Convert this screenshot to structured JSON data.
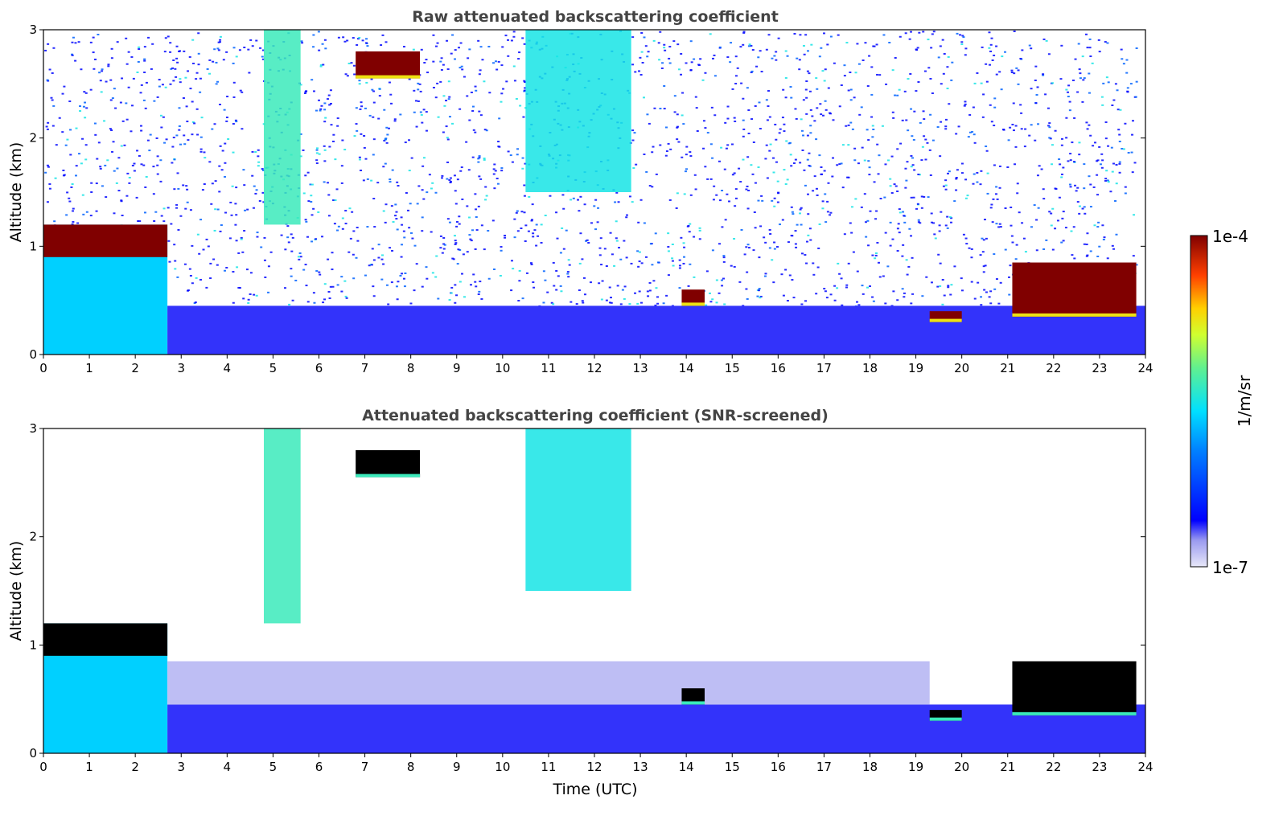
{
  "chart_data": [
    {
      "type": "heatmap",
      "title": "Raw attenuated backscattering coefficient",
      "xlabel": "",
      "ylabel": "Altitude (km)",
      "xlim": [
        0,
        24
      ],
      "ylim": [
        0,
        3
      ],
      "xticks": [
        "0",
        "1",
        "2",
        "3",
        "4",
        "5",
        "6",
        "7",
        "8",
        "9",
        "10",
        "11",
        "12",
        "13",
        "14",
        "15",
        "16",
        "17",
        "18",
        "19",
        "20",
        "21",
        "22",
        "23",
        "24"
      ],
      "yticks": [
        "0",
        "1",
        "2",
        "3"
      ],
      "screened": false,
      "features": [
        {
          "kind": "boundary_layer",
          "t": [
            0,
            2.7
          ],
          "z": [
            0,
            1.2
          ],
          "level": 0.45
        },
        {
          "kind": "cloud_top",
          "t": [
            0,
            2.7
          ],
          "z_top": [
            0.9,
            1.2
          ],
          "level": 1.0
        },
        {
          "kind": "aerosol_layer",
          "t": [
            2.7,
            24
          ],
          "z": [
            0,
            0.45
          ],
          "level": 0.12
        },
        {
          "kind": "cloud",
          "t": [
            6.8,
            8.2
          ],
          "z": [
            2.55,
            2.8
          ],
          "level": 1.0
        },
        {
          "kind": "virga",
          "t": [
            4.8,
            5.6
          ],
          "z": [
            1.2,
            3.0
          ],
          "level": 0.55
        },
        {
          "kind": "cirrus",
          "t": [
            10.5,
            12.8
          ],
          "z": [
            1.5,
            3.0
          ],
          "level": 0.5
        },
        {
          "kind": "cloud",
          "t": [
            13.9,
            14.4
          ],
          "z": [
            0.45,
            0.6
          ],
          "level": 1.0
        },
        {
          "kind": "cloud",
          "t": [
            19.3,
            20.0
          ],
          "z": [
            0.3,
            0.4
          ],
          "level": 1.0
        },
        {
          "kind": "cloud",
          "t": [
            21.1,
            23.8
          ],
          "z": [
            0.35,
            0.85
          ],
          "level": 1.0
        }
      ]
    },
    {
      "type": "heatmap",
      "title": "Attenuated backscattering coefficient (SNR-screened)",
      "xlabel": "Time (UTC)",
      "ylabel": "Altitude (km)",
      "xlim": [
        0,
        24
      ],
      "ylim": [
        0,
        3
      ],
      "xticks": [
        "0",
        "1",
        "2",
        "3",
        "4",
        "5",
        "6",
        "7",
        "8",
        "9",
        "10",
        "11",
        "12",
        "13",
        "14",
        "15",
        "16",
        "17",
        "18",
        "19",
        "20",
        "21",
        "22",
        "23",
        "24"
      ],
      "yticks": [
        "0",
        "1",
        "2",
        "3"
      ],
      "screened": true,
      "features": [
        {
          "kind": "boundary_layer",
          "t": [
            0,
            2.7
          ],
          "z": [
            0,
            1.2
          ],
          "level": 0.45
        },
        {
          "kind": "cloud_top",
          "t": [
            0,
            2.7
          ],
          "z_top": [
            0.9,
            1.2
          ],
          "level": 1.0
        },
        {
          "kind": "aerosol_layer",
          "t": [
            2.7,
            24
          ],
          "z": [
            0,
            0.45
          ],
          "level": 0.12
        },
        {
          "kind": "faint_layer",
          "t": [
            2.7,
            19.3
          ],
          "z": [
            0.45,
            0.85
          ],
          "level": 0.05
        },
        {
          "kind": "cloud",
          "t": [
            6.8,
            8.2
          ],
          "z": [
            2.55,
            2.8
          ],
          "level": 1.0
        },
        {
          "kind": "virga",
          "t": [
            4.8,
            5.6
          ],
          "z": [
            1.2,
            3.0
          ],
          "level": 0.55
        },
        {
          "kind": "cirrus",
          "t": [
            10.5,
            12.8
          ],
          "z": [
            1.5,
            3.0
          ],
          "level": 0.5
        },
        {
          "kind": "cloud",
          "t": [
            13.9,
            14.4
          ],
          "z": [
            0.45,
            0.6
          ],
          "level": 1.0
        },
        {
          "kind": "cloud",
          "t": [
            19.3,
            20.0
          ],
          "z": [
            0.3,
            0.4
          ],
          "level": 1.0
        },
        {
          "kind": "cloud",
          "t": [
            21.1,
            23.8
          ],
          "z": [
            0.35,
            0.85
          ],
          "level": 1.0
        }
      ]
    }
  ],
  "colorbar": {
    "max_label": "1e-4",
    "min_label": "1e-7",
    "unit_label": "1/m/sr",
    "colormap": "jet"
  }
}
